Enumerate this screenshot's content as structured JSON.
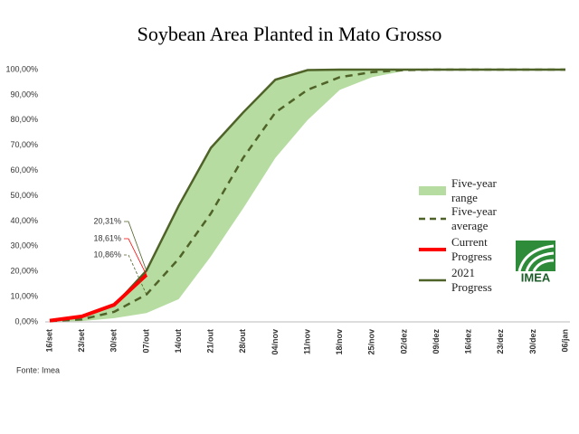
{
  "chart_data": {
    "type": "line",
    "title": "Soybean Area Planted in Mato Grosso",
    "source": "Fonte: Imea",
    "logo": "IMEA",
    "categories": [
      "16/set",
      "23/set",
      "30/set",
      "07/out",
      "14/out",
      "21/out",
      "28/out",
      "04/nov",
      "11/nov",
      "18/nov",
      "25/nov",
      "02/dez",
      "09/dez",
      "16/dez",
      "23/dez",
      "30/dez",
      "06/jan"
    ],
    "ylim": [
      0,
      100
    ],
    "yticks": [
      {
        "value": 0,
        "label": "0,00%"
      },
      {
        "value": 10,
        "label": "10,00%"
      },
      {
        "value": 20,
        "label": "20,00%"
      },
      {
        "value": 30,
        "label": "30,00%"
      },
      {
        "value": 40,
        "label": "40,00%"
      },
      {
        "value": 50,
        "label": "50,00%"
      },
      {
        "value": 60,
        "label": "60,00%"
      },
      {
        "value": 70,
        "label": "70,00%"
      },
      {
        "value": 80,
        "label": "80,00%"
      },
      {
        "value": 90,
        "label": "90,00%"
      },
      {
        "value": 100,
        "label": "100,00%"
      }
    ],
    "range": {
      "name": "Five-year range",
      "color": "#b6dca1",
      "lower": [
        0,
        0.3,
        1.5,
        3.5,
        9,
        26,
        45,
        65,
        80,
        92,
        97,
        99.5,
        100,
        100,
        100,
        100,
        100
      ],
      "upper": [
        0.5,
        2,
        6.5,
        20.31,
        46,
        69,
        83,
        96,
        99.8,
        100,
        100,
        100,
        100,
        100,
        100,
        100,
        100
      ]
    },
    "series": [
      {
        "name": "Five-year average",
        "color": "#4f6228",
        "dashed": true,
        "values": [
          0.3,
          1,
          4,
          10.86,
          25,
          43,
          65,
          83,
          92,
          97,
          99,
          99.8,
          100,
          100,
          100,
          100,
          100
        ],
        "value_labels": [
          null,
          null,
          null,
          "10,86%",
          null,
          null,
          null,
          null,
          null,
          null,
          null,
          null,
          null,
          null,
          null,
          null,
          null
        ]
      },
      {
        "name": "Current Progress",
        "color": "#ff0000",
        "dashed": false,
        "values": [
          0.5,
          2.2,
          6.8,
          18.61,
          null,
          null,
          null,
          null,
          null,
          null,
          null,
          null,
          null,
          null,
          null,
          null,
          null
        ],
        "value_labels": [
          null,
          null,
          null,
          "18,61%",
          null,
          null,
          null,
          null,
          null,
          null,
          null,
          null,
          null,
          null,
          null,
          null,
          null
        ]
      },
      {
        "name": "2021 Progress",
        "color": "#4f6228",
        "dashed": false,
        "values": [
          0.5,
          2,
          6.5,
          20.31,
          46,
          69,
          83,
          96,
          99.8,
          100,
          100,
          100,
          100,
          100,
          100,
          100,
          100
        ],
        "value_labels": [
          null,
          null,
          null,
          "20,31%",
          null,
          null,
          null,
          null,
          null,
          null,
          null,
          null,
          null,
          null,
          null,
          null,
          null
        ]
      }
    ]
  }
}
